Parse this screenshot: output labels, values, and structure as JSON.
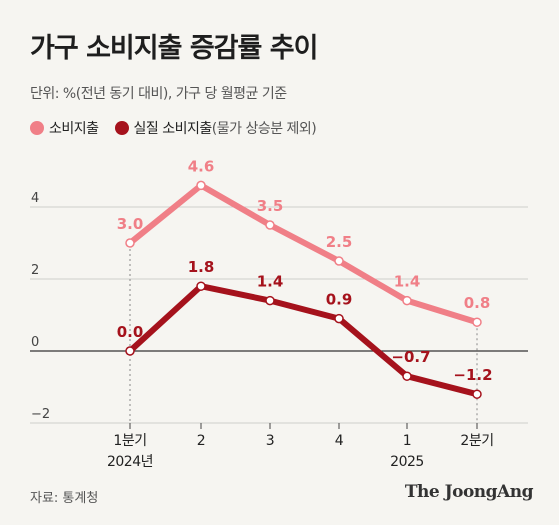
{
  "title": "가구 소비지출 증감률 추이",
  "subtitle": "단위: %(전년 동기 대비), 가구 당 월평균 기준",
  "legend": {
    "series1": "소비지출",
    "series2": "실질 소비지출",
    "series2_note": "(물가 상승분 제외)"
  },
  "source": "자료: 통계청",
  "brand": "The JoongAng",
  "chart_data": {
    "type": "line",
    "categories": [
      "1분기",
      "2",
      "3",
      "4",
      "1",
      "2분기"
    ],
    "year_labels": [
      {
        "index": 0,
        "label": "2024년"
      },
      {
        "index": 4,
        "label": "2025"
      }
    ],
    "series": [
      {
        "name": "소비지출",
        "values": [
          3.0,
          4.6,
          3.5,
          2.5,
          1.4,
          0.8
        ],
        "labels": [
          "3.0",
          "4.6",
          "3.5",
          "2.5",
          "1.4",
          "0.8"
        ],
        "color": "#f07f87"
      },
      {
        "name": "실질 소비지출",
        "values": [
          0.0,
          1.8,
          1.4,
          0.9,
          -0.7,
          -1.2
        ],
        "labels": [
          "0.0",
          "1.8",
          "1.4",
          "0.9",
          "−0.7",
          "−1.2"
        ],
        "color": "#a5121c"
      }
    ],
    "yticks": [
      4,
      2,
      0,
      -2
    ],
    "ytick_labels": [
      "4",
      "2",
      "0",
      "−2"
    ],
    "ylim": [
      -2,
      4
    ],
    "grid": true
  }
}
